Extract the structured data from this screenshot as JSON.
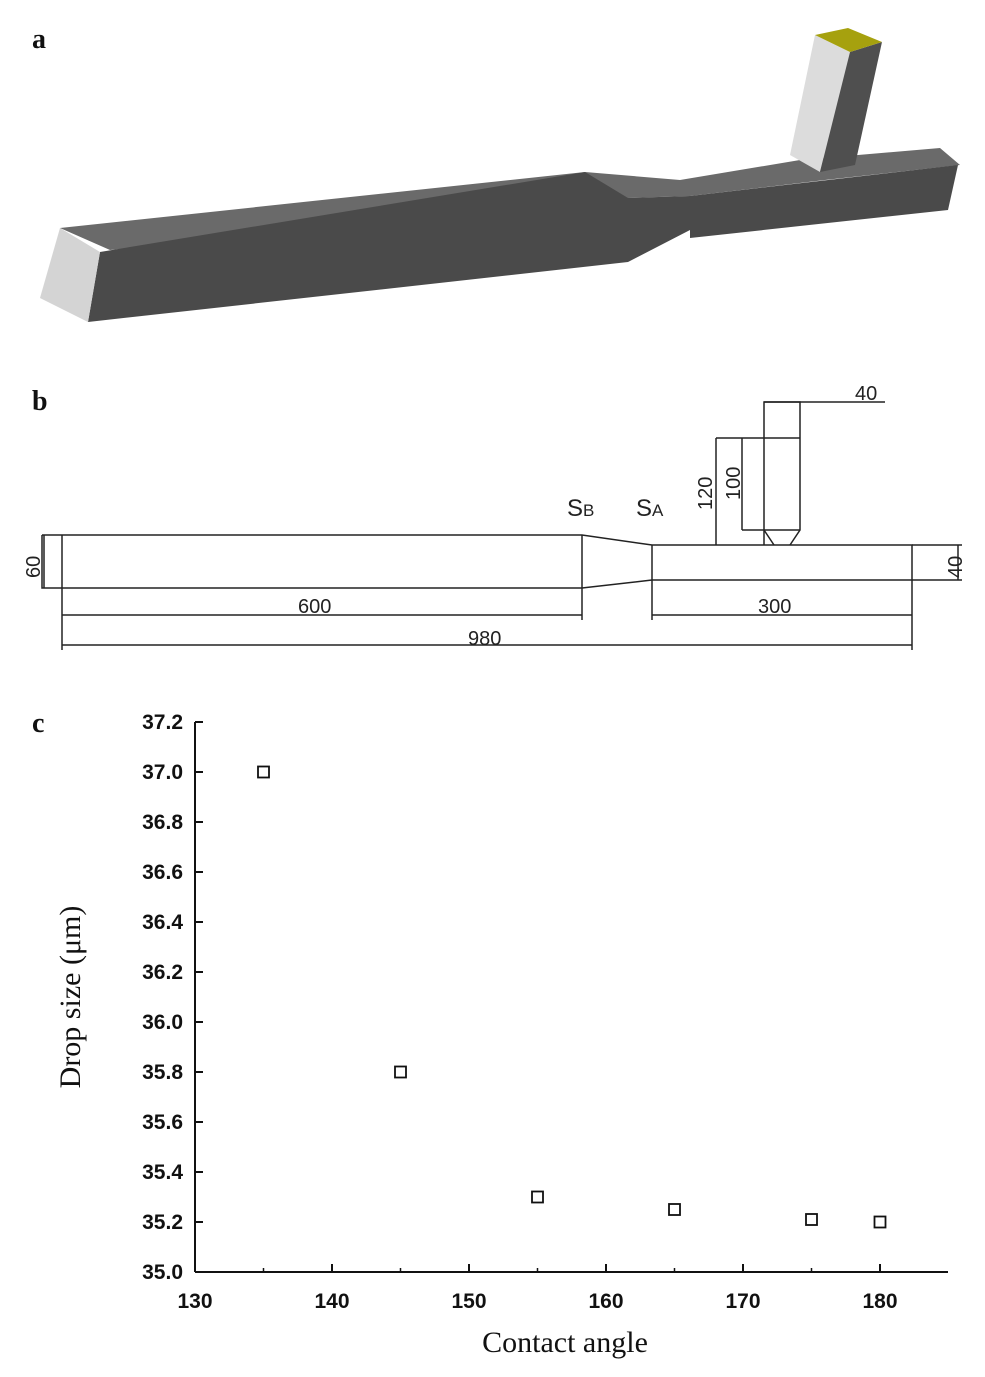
{
  "panels": {
    "a": "a",
    "b": "b",
    "c": "c"
  },
  "colors": {
    "channel_front": "#4a4a4a",
    "channel_top": "#6a6a6a",
    "channel_end": "#d4d4d4",
    "inlet_top": "#a6a10e",
    "inlet_side_light": "#dcdcdc",
    "inlet_side_dark": "#4f4f4f"
  },
  "dimensions": {
    "width_left": "60",
    "width_right": "40",
    "len_main": "600",
    "len_right": "300",
    "len_total": "980",
    "inlet_width": "40",
    "inlet_h1": "120",
    "inlet_h2": "100",
    "section_b": {
      "main": "S",
      "sub": "B"
    },
    "section_a": {
      "main": "S",
      "sub": "A"
    }
  },
  "chart_data": {
    "type": "scatter",
    "title": "",
    "xlabel": "Contact angle",
    "ylabel": "Drop size (μm)",
    "xlim": [
      130,
      185
    ],
    "ylim": [
      35.0,
      37.2
    ],
    "xticks": [
      130,
      140,
      150,
      160,
      170,
      180
    ],
    "yticks": [
      35.0,
      35.2,
      35.4,
      35.6,
      35.8,
      36.0,
      36.2,
      36.4,
      36.6,
      36.8,
      37.0,
      37.2
    ],
    "marker": "open-square",
    "points": [
      {
        "x": 135,
        "y": 37.0
      },
      {
        "x": 145,
        "y": 35.8
      },
      {
        "x": 155,
        "y": 35.3
      },
      {
        "x": 165,
        "y": 35.25
      },
      {
        "x": 175,
        "y": 35.21
      },
      {
        "x": 180,
        "y": 35.2
      }
    ]
  }
}
